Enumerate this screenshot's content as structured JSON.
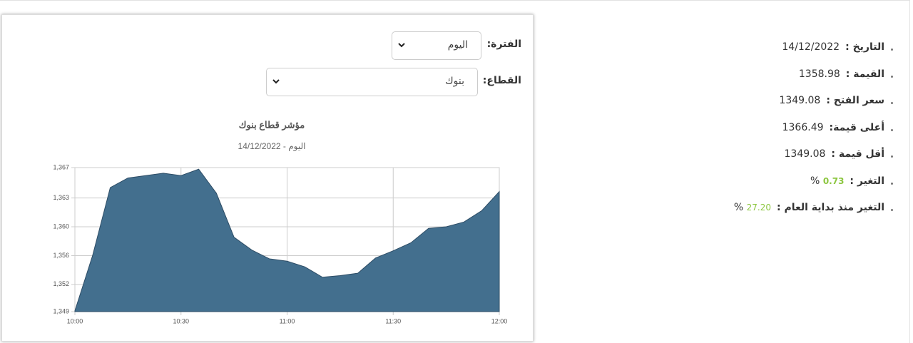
{
  "form": {
    "period_label": "الفترة:",
    "period_value": "اليوم",
    "sector_label": "القطاع:",
    "sector_value": "بنوك"
  },
  "info": [
    {
      "label": "التاريخ :",
      "value": "14/12/2022"
    },
    {
      "label": "القيمة :",
      "value": "1358.98"
    },
    {
      "label": "سعر الفتح :",
      "value": "1349.08"
    },
    {
      "label": "أعلى قيمة:",
      "value": "1366.49"
    },
    {
      "label": "أقل قيمة :",
      "value": "1349.08"
    },
    {
      "label": "التغير :",
      "value": "0.73",
      "unit": "%"
    },
    {
      "label": "التغير منذ بداية العام :",
      "value": "27.20",
      "unit": "%"
    }
  ],
  "chart_data": {
    "type": "area",
    "title": "مؤشر قطاع بنوك",
    "subtitle": "اليوم - 14/12/2022",
    "categories": [
      "10:00",
      null,
      null,
      null,
      null,
      null,
      "10:30",
      null,
      null,
      null,
      null,
      null,
      "11:00",
      null,
      null,
      null,
      null,
      null,
      "11:30",
      null,
      null,
      null,
      null,
      null,
      "12:00"
    ],
    "series": [
      {
        "name": "مؤشر قطاع بنوك",
        "color": "#436f8e",
        "values": [
          1349.1,
          1356,
          1364.5,
          1365.7,
          1366,
          1366.3,
          1366,
          1366.8,
          1363.8,
          1358.3,
          1356.7,
          1355.6,
          1355.3,
          1354.6,
          1353.3,
          1353.5,
          1353.8,
          1355.7,
          1356.6,
          1357.6,
          1359.4,
          1359.6,
          1360.2,
          1361.6,
          1364
        ]
      }
    ],
    "ylim": [
      1349,
      1367
    ],
    "yticks": [
      {
        "value": 1349,
        "label": "1,349"
      },
      {
        "value": 1352.4,
        "label": "1,352"
      },
      {
        "value": 1356,
        "label": "1,356"
      },
      {
        "value": 1359.6,
        "label": "1,360"
      },
      {
        "value": 1363.2,
        "label": "1,363"
      },
      {
        "value": 1367,
        "label": "1,367"
      }
    ],
    "grid": true
  }
}
